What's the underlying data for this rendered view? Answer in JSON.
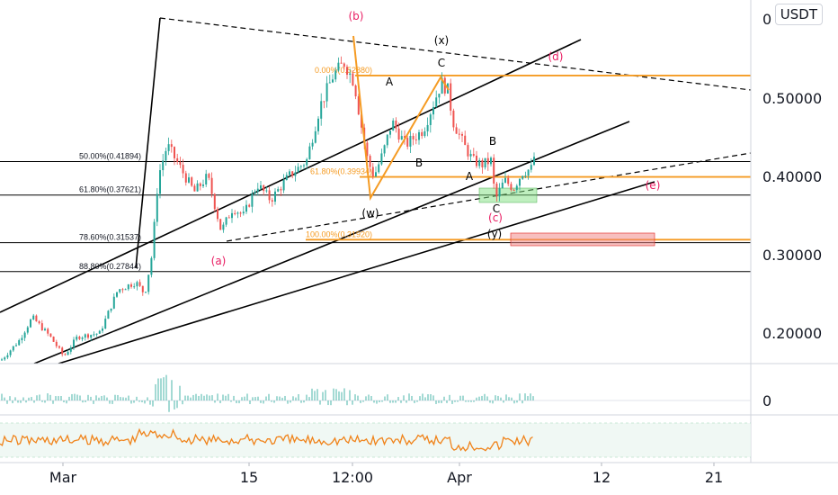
{
  "chart_data": {
    "type": "candlestick",
    "quote_currency": "USDT",
    "y_axis": {
      "ticks": [
        0.2,
        0.3,
        0.4,
        0.5
      ],
      "tick_labels": [
        "0.20000",
        "0.30000",
        "0.40000",
        "0.50000"
      ],
      "top_partial_label": "0",
      "range": [
        0.145,
        0.61
      ]
    },
    "x_axis": {
      "tick_labels": [
        "Mar",
        "15",
        "12:00",
        "Apr",
        "12",
        "21"
      ]
    },
    "price_series": {
      "up_color": "#26a69a",
      "down_color": "#ef5350",
      "anchors": [
        [
          0,
          0.165
        ],
        [
          20,
          0.19
        ],
        [
          35,
          0.22
        ],
        [
          55,
          0.195
        ],
        [
          70,
          0.17
        ],
        [
          85,
          0.195
        ],
        [
          110,
          0.2
        ],
        [
          130,
          0.255
        ],
        [
          150,
          0.265
        ],
        [
          160,
          0.25
        ],
        [
          168,
          0.3
        ],
        [
          175,
          0.4
        ],
        [
          185,
          0.44
        ],
        [
          200,
          0.41
        ],
        [
          215,
          0.38
        ],
        [
          230,
          0.4
        ],
        [
          245,
          0.33
        ],
        [
          258,
          0.36
        ],
        [
          270,
          0.35
        ],
        [
          285,
          0.39
        ],
        [
          300,
          0.37
        ],
        [
          320,
          0.4
        ],
        [
          340,
          0.42
        ],
        [
          355,
          0.49
        ],
        [
          370,
          0.53
        ],
        [
          382,
          0.545
        ],
        [
          393,
          0.52
        ],
        [
          400,
          0.47
        ],
        [
          408,
          0.42
        ],
        [
          415,
          0.4
        ],
        [
          425,
          0.43
        ],
        [
          435,
          0.47
        ],
        [
          450,
          0.44
        ],
        [
          470,
          0.46
        ],
        [
          490,
          0.52
        ],
        [
          497,
          0.51
        ],
        [
          503,
          0.47
        ],
        [
          515,
          0.44
        ],
        [
          525,
          0.42
        ],
        [
          535,
          0.415
        ],
        [
          545,
          0.42
        ],
        [
          550,
          0.37
        ],
        [
          560,
          0.395
        ],
        [
          570,
          0.385
        ],
        [
          580,
          0.405
        ],
        [
          590,
          0.41
        ],
        [
          593,
          0.425
        ]
      ]
    },
    "horizontal_levels": [
      {
        "label": "50.00%(0.41894)",
        "value": 0.41894,
        "color": "#000000"
      },
      {
        "label": "61.80%(0.37621)",
        "value": 0.37621,
        "color": "#000000"
      },
      {
        "label": "78.60%(0.31537)",
        "value": 0.31537,
        "color": "#000000"
      },
      {
        "label": "88.80%(0.27844)",
        "value": 0.27844,
        "color": "#000000"
      },
      {
        "label": "0.00%(0.52880)",
        "value": 0.5288,
        "color": "#f59b23"
      },
      {
        "label": "61.80%(0.39934)",
        "value": 0.39934,
        "color": "#f59b23"
      },
      {
        "label": "100.00%(0.31920)",
        "value": 0.3192,
        "color": "#f59b23"
      }
    ],
    "wave_labels": [
      {
        "text": "(b)",
        "color": "#e91e63"
      },
      {
        "text": "(x)",
        "color": "#000000"
      },
      {
        "text": "(d)",
        "color": "#e91e63"
      },
      {
        "text": "C",
        "color": "#000000"
      },
      {
        "text": "A",
        "color": "#000000"
      },
      {
        "text": "B",
        "color": "#000000"
      },
      {
        "text": "B",
        "color": "#000000"
      },
      {
        "text": "A",
        "color": "#000000"
      },
      {
        "text": "(e)",
        "color": "#e91e63"
      },
      {
        "text": "(w)",
        "color": "#000000"
      },
      {
        "text": "C",
        "color": "#000000"
      },
      {
        "text": "(c)",
        "color": "#e91e63"
      },
      {
        "text": "(y)",
        "color": "#000000"
      },
      {
        "text": "(a)",
        "color": "#e91e63"
      }
    ],
    "zones": [
      {
        "color": "#7fe07f",
        "meaning": "support zone"
      },
      {
        "color": "#f08080",
        "meaning": "target zone"
      }
    ],
    "indicators": [
      {
        "name": "histogram oscillator",
        "zero_label": "0",
        "color": "#26a69a"
      },
      {
        "name": "oscillator line",
        "color": "#f0831a"
      }
    ]
  }
}
